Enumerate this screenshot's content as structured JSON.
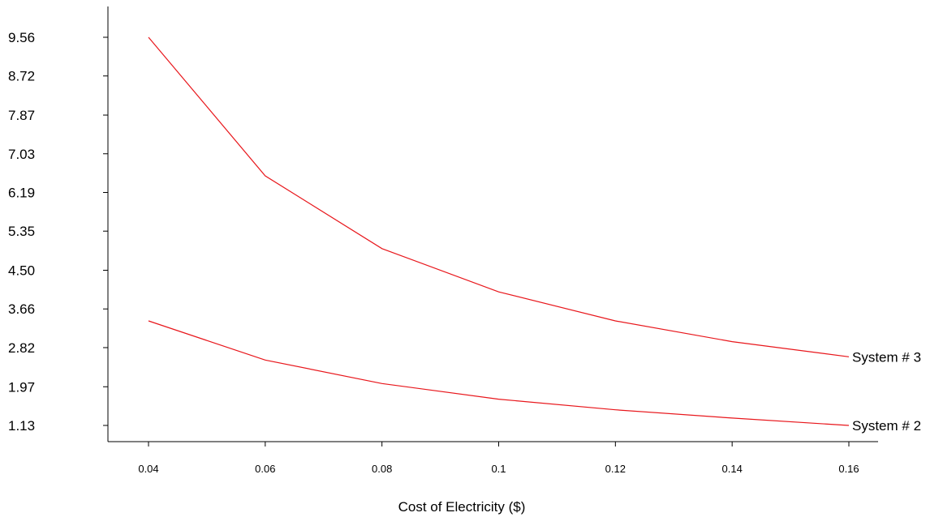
{
  "chart_data": {
    "type": "line",
    "title": "",
    "xlabel": "Cost of Electricity ($)",
    "ylabel": "",
    "x": [
      0.04,
      0.06,
      0.08,
      0.1,
      0.12,
      0.14,
      0.16
    ],
    "x_tick_labels": [
      "0.04",
      "0.06",
      "0.08",
      "0.1",
      "0.12",
      "0.14",
      "0.16"
    ],
    "y_tick_values": [
      1.13,
      1.97,
      2.82,
      3.66,
      4.5,
      5.35,
      6.19,
      7.03,
      7.87,
      8.72,
      9.56
    ],
    "y_tick_labels": [
      "1.13",
      "1.97",
      "2.82",
      "3.66",
      "4.50",
      "5.35",
      "6.19",
      "7.03",
      "7.87",
      "8.72",
      "9.56"
    ],
    "series": [
      {
        "name": "System # 3",
        "color": "#e8161b",
        "values": [
          9.56,
          6.55,
          4.97,
          4.03,
          3.4,
          2.95,
          2.62
        ]
      },
      {
        "name": "System # 2",
        "color": "#e8161b",
        "values": [
          3.4,
          2.55,
          2.04,
          1.7,
          1.47,
          1.29,
          1.13
        ]
      }
    ],
    "grid": false,
    "legend": "line-end labels"
  }
}
